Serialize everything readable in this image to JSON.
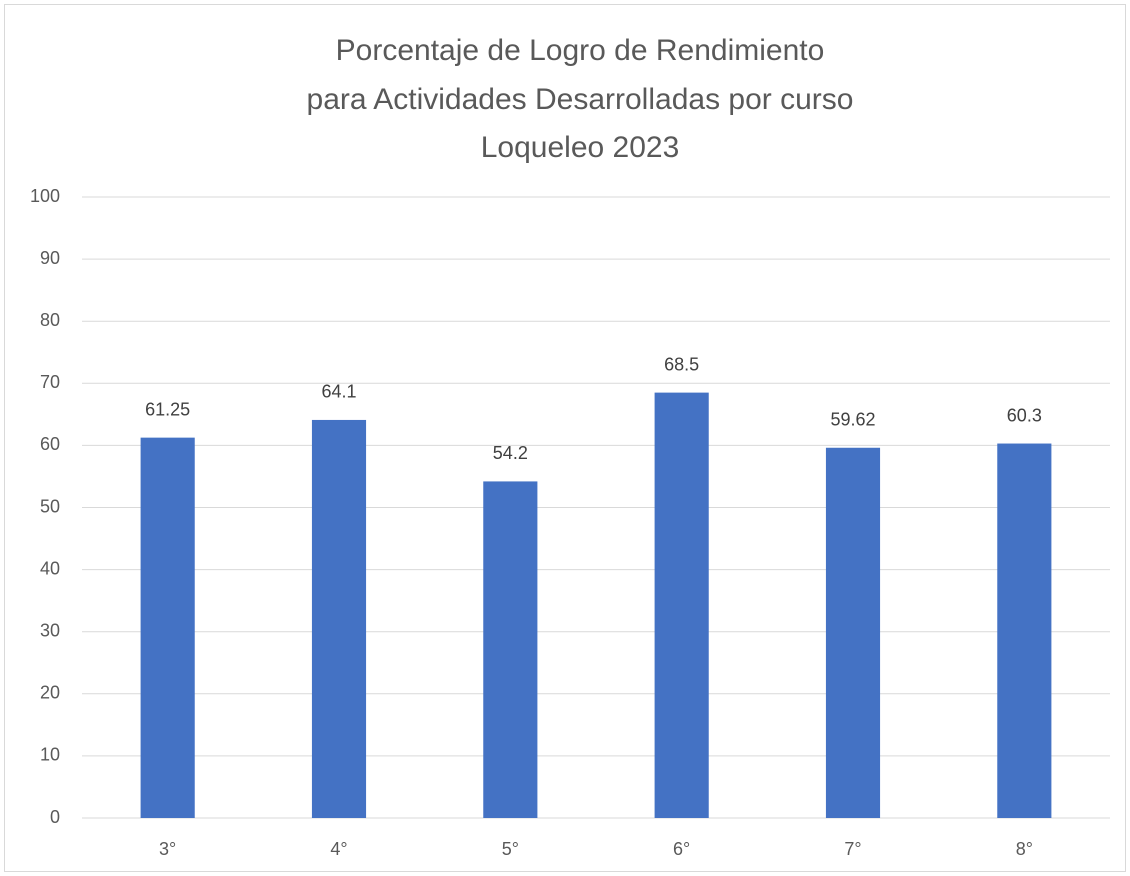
{
  "chart_data": {
    "type": "bar",
    "title": [
      "Porcentaje de Logro de Rendimiento",
      "para Actividades Desarrolladas por curso",
      "Loqueleo 2023"
    ],
    "categories": [
      "3°",
      "4°",
      "5°",
      "6°",
      "7°",
      "8°"
    ],
    "values": [
      61.25,
      64.1,
      54.2,
      68.5,
      59.62,
      60.3
    ],
    "color": "#4472c4",
    "ylim": [
      0,
      100
    ],
    "yticks": [
      0,
      10,
      20,
      30,
      40,
      50,
      60,
      70,
      80,
      90,
      100
    ],
    "grid": true,
    "data_labels": true
  }
}
